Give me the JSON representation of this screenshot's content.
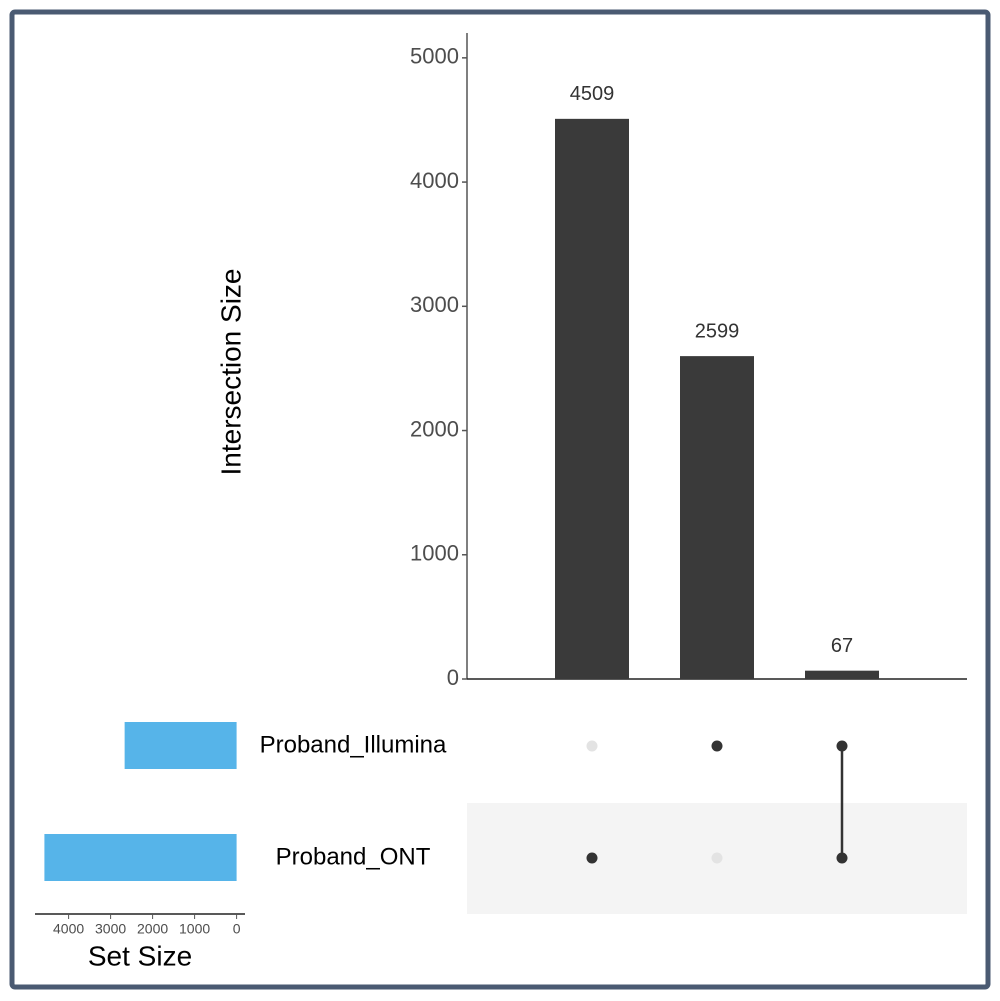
{
  "chart_data": {
    "type": "upset",
    "ylabel": "Intersection Size",
    "ylim": [
      0,
      5200
    ],
    "yticks": [
      0,
      1000,
      2000,
      3000,
      4000,
      5000
    ],
    "intersections": [
      4509,
      2599,
      67
    ],
    "bar_color": "#3a3a3a",
    "sets": [
      "Proband_Illumina",
      "Proband_ONT"
    ],
    "membership": [
      [
        0,
        1
      ],
      [
        1,
        0
      ],
      [
        1,
        1
      ]
    ],
    "set_sizes": [
      2666,
      4576
    ],
    "set_color": "#56b4e9",
    "xlabel": "Set Size",
    "xlim": [
      4800,
      -200
    ],
    "xticks": [
      4000,
      3000,
      2000,
      1000,
      0
    ]
  }
}
